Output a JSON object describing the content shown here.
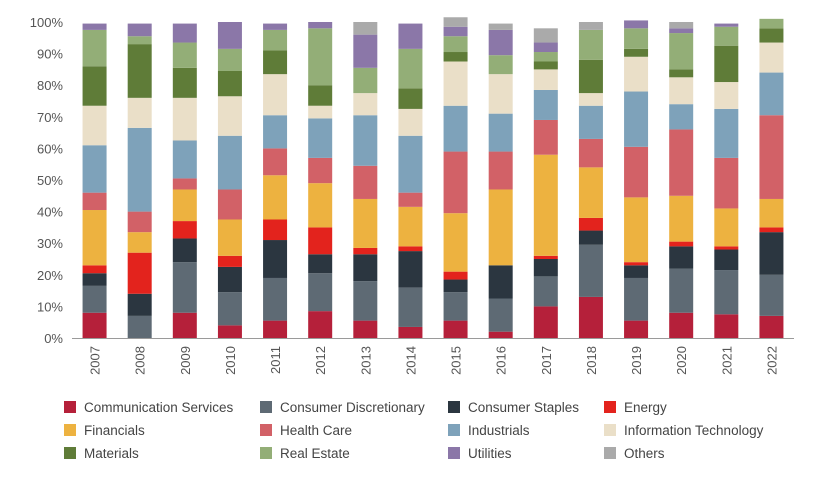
{
  "chart_data": {
    "type": "bar",
    "stacked": true,
    "title": "",
    "xlabel": "",
    "ylabel": "",
    "ylim": [
      0,
      100
    ],
    "yticks": [
      "0%",
      "10%",
      "20%",
      "30%",
      "40%",
      "50%",
      "60%",
      "70%",
      "80%",
      "90%",
      "100%"
    ],
    "categories": [
      "2007",
      "2008",
      "2009",
      "2010",
      "2011",
      "2012",
      "2013",
      "2014",
      "2015",
      "2016",
      "2017",
      "2018",
      "2019",
      "2020",
      "2021",
      "2022"
    ],
    "series": [
      {
        "name": "Communication Services",
        "color": "#B5203A",
        "values": [
          8,
          0,
          8,
          4,
          5.5,
          8.5,
          5.5,
          3.5,
          5.5,
          2,
          10,
          13,
          5.5,
          8,
          7.5,
          7
        ]
      },
      {
        "name": "Consumer Discretionary",
        "color": "#5E6A74",
        "values": [
          8.5,
          7,
          16,
          10.5,
          13.5,
          12,
          12.5,
          12.5,
          9,
          10.5,
          9.5,
          16.5,
          13.5,
          14,
          14,
          13
        ]
      },
      {
        "name": "Consumer Staples",
        "color": "#2B3640",
        "values": [
          4,
          7,
          7.5,
          8,
          12,
          6,
          8.5,
          11.5,
          4,
          10.5,
          5.5,
          4.5,
          4,
          7,
          6.5,
          13.5
        ]
      },
      {
        "name": "Energy",
        "color": "#E3231D",
        "values": [
          2.5,
          13,
          5.5,
          3.5,
          6.5,
          8.5,
          2,
          1.5,
          2.5,
          0,
          1,
          4,
          1,
          1.5,
          1,
          1.5
        ]
      },
      {
        "name": "Financials",
        "color": "#EDB240",
        "values": [
          17.5,
          6.5,
          10,
          11.5,
          14,
          14,
          15.5,
          12.5,
          18.5,
          24,
          32,
          16,
          20.5,
          14.5,
          12,
          9
        ]
      },
      {
        "name": "Health Care",
        "color": "#D26167",
        "values": [
          5.5,
          6.5,
          3.5,
          9.5,
          8.5,
          8,
          10.5,
          4.5,
          19.5,
          12,
          11,
          9,
          16,
          21,
          16,
          26.5
        ]
      },
      {
        "name": "Industrials",
        "color": "#7EA2BA",
        "values": [
          15,
          26.5,
          12,
          17,
          10.5,
          12.5,
          16,
          18,
          14.5,
          12,
          9.5,
          10.5,
          17.5,
          8,
          15.5,
          13.5
        ]
      },
      {
        "name": "Information Technology",
        "color": "#EADFC8",
        "values": [
          12.5,
          9.5,
          13.5,
          12.5,
          13,
          4,
          7,
          8.5,
          14,
          12.5,
          6.5,
          4,
          11,
          8.5,
          8.5,
          9.5
        ]
      },
      {
        "name": "Materials",
        "color": "#5F7C38",
        "values": [
          12.5,
          17,
          9.5,
          8,
          7.5,
          6.5,
          0,
          6.5,
          3,
          0,
          2.5,
          10.5,
          2.5,
          2.5,
          11.5,
          4.5
        ]
      },
      {
        "name": "Real Estate",
        "color": "#93AE77",
        "values": [
          11.5,
          2.5,
          8,
          7,
          6.5,
          18,
          8,
          12.5,
          5,
          6,
          3,
          9.5,
          6.5,
          11.5,
          6,
          3
        ]
      },
      {
        "name": "Utilities",
        "color": "#8B77A8",
        "values": [
          2,
          4,
          6,
          8.5,
          2,
          2,
          10.5,
          8,
          3,
          8,
          3,
          0,
          2.5,
          1.5,
          1,
          0
        ]
      },
      {
        "name": "Others",
        "color": "#AAAAAA",
        "values": [
          0,
          0,
          0,
          0,
          0,
          0,
          4,
          0,
          3,
          2,
          4.5,
          2.5,
          0,
          2,
          0,
          0
        ]
      }
    ]
  },
  "legend": {
    "items": [
      "Communication Services",
      "Consumer Discretionary",
      "Consumer Staples",
      "Energy",
      "Financials",
      "Health Care",
      "Industrials",
      "Information Technology",
      "Materials",
      "Real Estate",
      "Utilities",
      "Others"
    ]
  }
}
